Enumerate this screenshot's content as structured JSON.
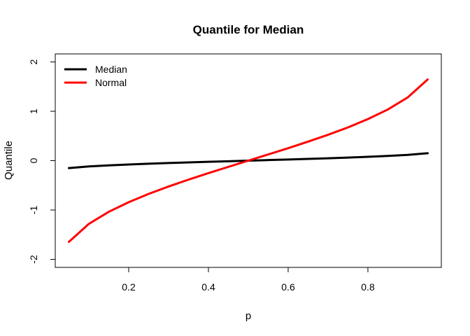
{
  "chart_data": {
    "type": "line",
    "title": "Quantile for Median",
    "xlabel": "p",
    "ylabel": "Quantile",
    "xlim": [
      0.05,
      0.95
    ],
    "ylim": [
      -2,
      2
    ],
    "x_ticks": [
      0.2,
      0.4,
      0.6,
      0.8
    ],
    "x_tick_labels": [
      "0.2",
      "0.4",
      "0.6",
      "0.8"
    ],
    "y_ticks": [
      -2,
      -1,
      0,
      1,
      2
    ],
    "y_tick_labels": [
      "-2",
      "-1",
      "0",
      "1",
      "2"
    ],
    "grid": false,
    "legend_position": "top-left",
    "x": [
      0.05,
      0.1,
      0.15,
      0.2,
      0.25,
      0.3,
      0.35,
      0.4,
      0.45,
      0.5,
      0.55,
      0.6,
      0.65,
      0.7,
      0.75,
      0.8,
      0.85,
      0.9,
      0.95
    ],
    "series": [
      {
        "name": "Median",
        "color": "#000000",
        "values": [
          -0.15,
          -0.117,
          -0.096,
          -0.078,
          -0.062,
          -0.048,
          -0.036,
          -0.023,
          -0.012,
          0.0,
          0.012,
          0.023,
          0.036,
          0.048,
          0.062,
          0.078,
          0.096,
          0.117,
          0.15
        ]
      },
      {
        "name": "Normal",
        "color": "#ff0000",
        "values": [
          -1.645,
          -1.282,
          -1.036,
          -0.842,
          -0.674,
          -0.524,
          -0.385,
          -0.253,
          -0.126,
          0.0,
          0.126,
          0.253,
          0.385,
          0.524,
          0.674,
          0.842,
          1.036,
          1.282,
          1.645
        ]
      }
    ]
  }
}
